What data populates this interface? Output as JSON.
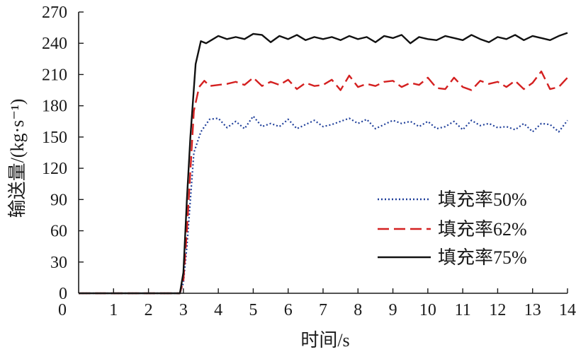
{
  "chart_data": {
    "type": "line",
    "title": "",
    "xlabel": "时间/s",
    "ylabel": "输送量/(kg·s⁻¹)",
    "xlim": [
      0,
      14
    ],
    "ylim": [
      0,
      270
    ],
    "xticks": [
      0,
      1,
      2,
      3,
      4,
      5,
      6,
      7,
      8,
      9,
      10,
      11,
      12,
      13,
      14
    ],
    "yticks": [
      0,
      30,
      60,
      90,
      120,
      150,
      180,
      210,
      240,
      270
    ],
    "xtick_labels": [
      "0",
      "1",
      "2",
      "3",
      "4",
      "5",
      "6",
      "7",
      "8",
      "9",
      "10",
      "11",
      "12",
      "13",
      "14"
    ],
    "ytick_labels": [
      "0",
      "30",
      "60",
      "90",
      "120",
      "150",
      "180",
      "210",
      "240",
      "270"
    ],
    "grid": false,
    "legend_position": "bottom-right",
    "series": [
      {
        "name": "填充率50%",
        "color": "#1f3f9a",
        "style": "dotted",
        "x": [
          0,
          2.9,
          3.0,
          3.1,
          3.3,
          3.5,
          3.75,
          4.0,
          4.25,
          4.5,
          4.75,
          5.0,
          5.25,
          5.5,
          5.75,
          6.0,
          6.25,
          6.5,
          6.75,
          7.0,
          7.25,
          7.5,
          7.75,
          8.0,
          8.25,
          8.5,
          8.75,
          9.0,
          9.25,
          9.5,
          9.75,
          10.0,
          10.25,
          10.5,
          10.75,
          11.0,
          11.25,
          11.5,
          11.75,
          12.0,
          12.25,
          12.5,
          12.75,
          13.0,
          13.25,
          13.5,
          13.75,
          14.0
        ],
        "values": [
          0,
          0,
          10,
          45,
          135,
          155,
          167,
          168,
          159,
          165,
          158,
          170,
          160,
          163,
          160,
          167,
          158,
          162,
          166,
          160,
          162,
          165,
          168,
          163,
          167,
          158,
          162,
          166,
          163,
          165,
          160,
          165,
          158,
          160,
          165,
          157,
          166,
          161,
          163,
          159,
          160,
          157,
          163,
          155,
          163,
          162,
          155,
          166
        ]
      },
      {
        "name": "填充率62%",
        "color": "#d42020",
        "style": "dashed",
        "x": [
          0,
          2.9,
          3.0,
          3.1,
          3.3,
          3.45,
          3.6,
          3.75,
          4.0,
          4.25,
          4.5,
          4.75,
          5.0,
          5.25,
          5.5,
          5.75,
          6.0,
          6.25,
          6.5,
          6.75,
          7.0,
          7.25,
          7.5,
          7.75,
          8.0,
          8.25,
          8.5,
          8.75,
          9.0,
          9.25,
          9.5,
          9.75,
          10.0,
          10.25,
          10.5,
          10.75,
          11.0,
          11.25,
          11.5,
          11.75,
          12.0,
          12.25,
          12.5,
          12.75,
          13.0,
          13.25,
          13.5,
          13.75,
          14.0
        ],
        "values": [
          0,
          0,
          12,
          60,
          175,
          198,
          204,
          199,
          200,
          201,
          203,
          200,
          207,
          199,
          203,
          200,
          205,
          196,
          202,
          199,
          200,
          205,
          195,
          209,
          198,
          201,
          199,
          203,
          204,
          198,
          202,
          200,
          207,
          197,
          196,
          207,
          198,
          195,
          204,
          201,
          203,
          198,
          204,
          196,
          202,
          213,
          196,
          198,
          207
        ]
      },
      {
        "name": "填充率75%",
        "color": "#111111",
        "style": "solid",
        "x": [
          0,
          2.9,
          3.0,
          3.1,
          3.2,
          3.35,
          3.5,
          3.65,
          3.8,
          4.0,
          4.25,
          4.5,
          4.75,
          5.0,
          5.25,
          5.5,
          5.75,
          6.0,
          6.25,
          6.5,
          6.75,
          7.0,
          7.25,
          7.5,
          7.75,
          8.0,
          8.25,
          8.5,
          8.75,
          9.0,
          9.25,
          9.5,
          9.75,
          10.0,
          10.25,
          10.5,
          10.75,
          11.0,
          11.25,
          11.5,
          11.75,
          12.0,
          12.25,
          12.5,
          12.75,
          13.0,
          13.25,
          13.5,
          13.75,
          14.0
        ],
        "values": [
          0,
          0,
          20,
          90,
          150,
          220,
          242,
          240,
          243,
          247,
          244,
          246,
          244,
          249,
          248,
          241,
          247,
          244,
          248,
          243,
          246,
          244,
          246,
          243,
          247,
          244,
          246,
          241,
          247,
          245,
          248,
          240,
          246,
          244,
          243,
          247,
          245,
          243,
          248,
          244,
          241,
          246,
          244,
          248,
          243,
          247,
          245,
          243,
          247,
          250
        ]
      }
    ]
  }
}
